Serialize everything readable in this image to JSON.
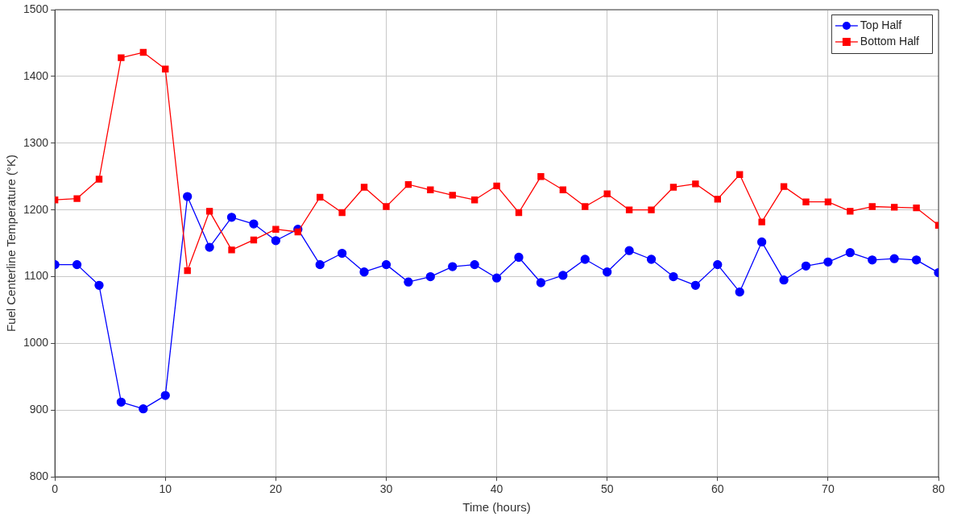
{
  "chart_data": {
    "type": "line",
    "xlabel": "Time (hours)",
    "ylabel": "Fuel Centerline Temperature (°K)",
    "x": [
      0,
      2,
      4,
      6,
      8,
      10,
      12,
      14,
      16,
      18,
      20,
      22,
      24,
      26,
      28,
      30,
      32,
      34,
      36,
      38,
      40,
      42,
      44,
      46,
      48,
      50,
      52,
      54,
      56,
      58,
      60,
      62,
      64,
      66,
      68,
      70,
      72,
      74,
      76,
      78,
      80
    ],
    "series": [
      {
        "name": "Top Half",
        "color": "#0000ff",
        "marker": "circle",
        "values": [
          1118,
          1118,
          1087,
          912,
          902,
          922,
          1220,
          1144,
          1189,
          1179,
          1154,
          1171,
          1118,
          1135,
          1107,
          1118,
          1092,
          1100,
          1115,
          1118,
          1098,
          1129,
          1091,
          1102,
          1126,
          1107,
          1139,
          1126,
          1100,
          1087,
          1118,
          1077,
          1152,
          1095,
          1116,
          1122,
          1136,
          1125,
          1127,
          1125,
          1106
        ]
      },
      {
        "name": "Bottom Half",
        "color": "#ff0000",
        "marker": "square",
        "values": [
          1215,
          1217,
          1246,
          1428,
          1436,
          1411,
          1109,
          1198,
          1140,
          1155,
          1171,
          1167,
          1219,
          1196,
          1234,
          1205,
          1238,
          1230,
          1222,
          1215,
          1236,
          1196,
          1250,
          1230,
          1205,
          1224,
          1200,
          1200,
          1234,
          1239,
          1216,
          1253,
          1182,
          1235,
          1212,
          1212,
          1198,
          1205,
          1204,
          1203,
          1177
        ]
      }
    ],
    "xlim": [
      0,
      80
    ],
    "xticks": [
      0,
      10,
      20,
      30,
      40,
      50,
      60,
      70,
      80
    ],
    "ylim": [
      800,
      1500
    ],
    "yticks": [
      800,
      900,
      1000,
      1100,
      1200,
      1300,
      1400,
      1500
    ],
    "grid": true,
    "legend": "top right",
    "line_style": "solid"
  }
}
